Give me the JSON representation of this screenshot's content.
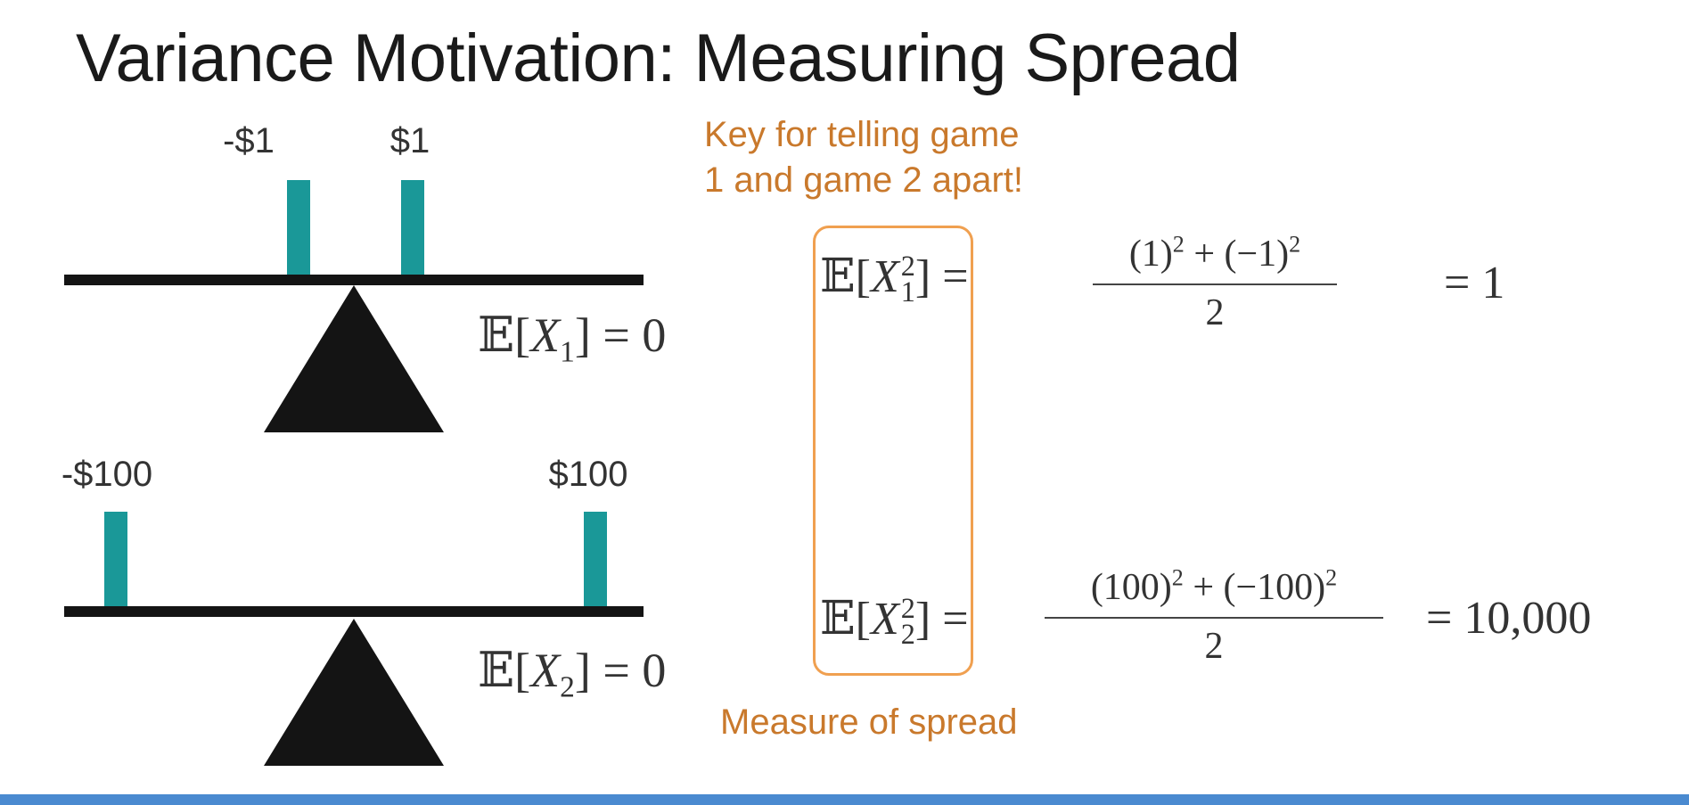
{
  "title": "Variance Motivation: Measuring Spread",
  "colors": {
    "stick": "#1a9898",
    "beam": "#141414",
    "fulcrum": "#141414",
    "annotation": "#c9792c",
    "highlight_box": "#f0a050",
    "bottom_bar": "#4a8ad0"
  },
  "game1": {
    "values": [
      "-$1",
      "$1"
    ],
    "expectation": {
      "E": "𝔼",
      "open": "[",
      "var": "X",
      "sub": "1",
      "close": "]",
      "rhs": " = 0"
    }
  },
  "game2": {
    "values": [
      "-$100",
      "$100"
    ],
    "expectation": {
      "E": "𝔼",
      "open": "[",
      "var": "X",
      "sub": "2",
      "close": "]",
      "rhs": " = 0"
    }
  },
  "note_top": [
    "Key for telling game",
    "1 and game 2 apart!"
  ],
  "note_bottom": "Measure of spread",
  "eq1": {
    "lhs": {
      "E": "𝔼",
      "open": "[",
      "var": "X",
      "sup": "2",
      "sub": "1",
      "close": "]",
      "equals": " ="
    },
    "numerator": {
      "a_base": "(1)",
      "a_exp": "2",
      "plus": " + ",
      "b_base": "(−1)",
      "b_exp": "2"
    },
    "denominator": "2",
    "result": "= 1"
  },
  "eq2": {
    "lhs": {
      "E": "𝔼",
      "open": "[",
      "var": "X",
      "sup": "2",
      "sub": "2",
      "close": "]",
      "equals": " ="
    },
    "numerator": {
      "a_base": "(100)",
      "a_exp": "2",
      "plus": " + ",
      "b_base": "(−100)",
      "b_exp": "2"
    },
    "denominator": "2",
    "result": "= 10,000"
  }
}
